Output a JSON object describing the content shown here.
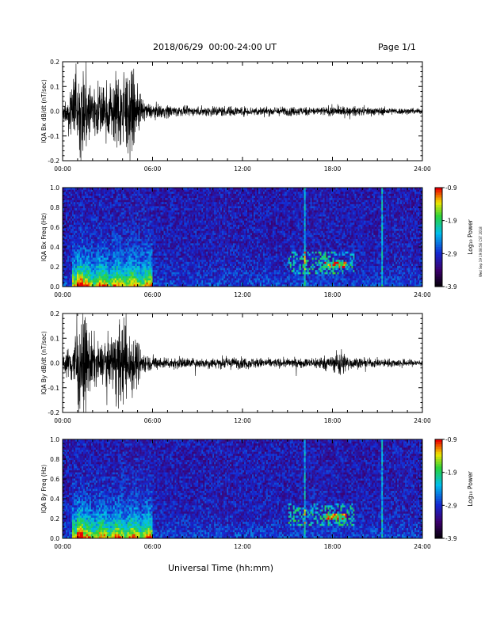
{
  "header": {
    "date_range": "2018/06/29  00:00-24:00 UT",
    "page": "Page 1/1"
  },
  "footer": {
    "x_axis_label": "Universal Time (hh:mm)"
  },
  "stamp": "Wed Sep 19 19:08:56 CST 2018",
  "chart_data": [
    {
      "type": "line",
      "ylabel": "IQA Bx dB/dt (nT/sec)",
      "xlim": [
        "00:00",
        "24:00"
      ],
      "ylim": [
        -0.2,
        0.2
      ],
      "x_ticks": [
        "00:00",
        "06:00",
        "12:00",
        "18:00",
        "24:00"
      ],
      "y_ticks": [
        "0.2",
        "0.1",
        "0.0",
        "-0.1",
        "-0.2"
      ],
      "series": [
        {
          "envelope_hours": [
            0,
            0.5,
            1,
            1.5,
            2,
            2.5,
            3,
            3.5,
            4,
            4.5,
            5,
            5.5,
            6,
            7,
            8,
            9,
            10,
            12,
            14,
            16,
            17,
            18,
            19,
            20,
            22,
            24
          ],
          "amplitude": [
            0.04,
            0.1,
            0.2,
            0.2,
            0.15,
            0.12,
            0.12,
            0.15,
            0.2,
            0.18,
            0.1,
            0.04,
            0.03,
            0.03,
            0.02,
            0.02,
            0.025,
            0.02,
            0.02,
            0.02,
            0.018,
            0.022,
            0.02,
            0.02,
            0.015,
            0.012
          ]
        }
      ]
    },
    {
      "type": "heatmap",
      "ylabel": "IQA Bx Freq (Hz)",
      "xlim": [
        "00:00",
        "24:00"
      ],
      "ylim": [
        0.0,
        1.0
      ],
      "x_ticks": [
        "00:00",
        "06:00",
        "12:00",
        "18:00",
        "24:00"
      ],
      "y_ticks": [
        "1.0",
        "0.8",
        "0.6",
        "0.4",
        "0.2",
        "0.0"
      ],
      "colorbar": {
        "label": "Log₁₀ Power",
        "ticks": [
          "-0.9",
          "-1.9",
          "-2.9",
          "-3.9"
        ],
        "range": [
          -3.9,
          -0.9
        ]
      }
    },
    {
      "type": "line",
      "ylabel": "IQA By dB/dt (nT/sec)",
      "xlim": [
        "00:00",
        "24:00"
      ],
      "ylim": [
        -0.2,
        0.2
      ],
      "x_ticks": [
        "00:00",
        "06:00",
        "12:00",
        "18:00",
        "24:00"
      ],
      "y_ticks": [
        "0.2",
        "0.1",
        "0.0",
        "-0.1",
        "-0.2"
      ],
      "series": [
        {
          "envelope_hours": [
            0,
            0.5,
            1,
            1.5,
            2,
            2.5,
            3,
            3.5,
            4,
            4.5,
            5,
            5.5,
            6,
            7,
            8,
            9,
            10,
            12,
            14,
            16,
            16.5,
            17,
            18,
            18.5,
            19,
            20,
            22,
            24
          ],
          "amplitude": [
            0.03,
            0.08,
            0.2,
            0.2,
            0.12,
            0.08,
            0.1,
            0.15,
            0.2,
            0.16,
            0.1,
            0.04,
            0.03,
            0.025,
            0.025,
            0.02,
            0.025,
            0.025,
            0.02,
            0.02,
            0.02,
            0.03,
            0.03,
            0.07,
            0.03,
            0.02,
            0.018,
            0.015
          ]
        }
      ]
    },
    {
      "type": "heatmap",
      "ylabel": "IQA By Freq (Hz)",
      "xlim": [
        "00:00",
        "24:00"
      ],
      "ylim": [
        0.0,
        1.0
      ],
      "x_ticks": [
        "00:00",
        "06:00",
        "12:00",
        "18:00",
        "24:00"
      ],
      "y_ticks": [
        "1.0",
        "0.8",
        "0.6",
        "0.4",
        "0.2",
        "0.0"
      ],
      "colorbar": {
        "label": "Log₁₀ Power",
        "ticks": [
          "-0.9",
          "-1.9",
          "-2.9",
          "-3.9"
        ],
        "range": [
          -3.9,
          -0.9
        ]
      }
    }
  ]
}
